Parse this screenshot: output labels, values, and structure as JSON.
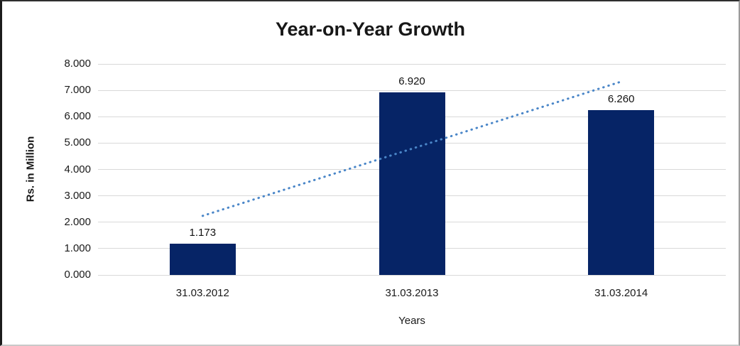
{
  "chart_data": {
    "type": "bar",
    "title": "Year-on-Year Growth",
    "categories": [
      "31.03.2012",
      "31.03.2013",
      "31.03.2014"
    ],
    "values": [
      1.173,
      6.92,
      6.26
    ],
    "value_labels": [
      "1.173",
      "6.920",
      "6.260"
    ],
    "xlabel": "Years",
    "ylabel": "Rs. in Million",
    "ylim": [
      0,
      8
    ],
    "ytick_step": 1,
    "ytick_labels": [
      "0.000",
      "1.000",
      "2.000",
      "3.000",
      "4.000",
      "5.000",
      "6.000",
      "7.000",
      "8.000"
    ],
    "grid": true,
    "legend": "none",
    "colors": {
      "bar": "#062466",
      "trendline": "#4a86c8",
      "gridline": "#d9d9d9",
      "title_text": "#171717",
      "label_text": "#1a1a1a"
    },
    "trendline": {
      "type": "linear",
      "style": "dotted",
      "start_value": 2.24,
      "end_value": 7.33
    }
  }
}
